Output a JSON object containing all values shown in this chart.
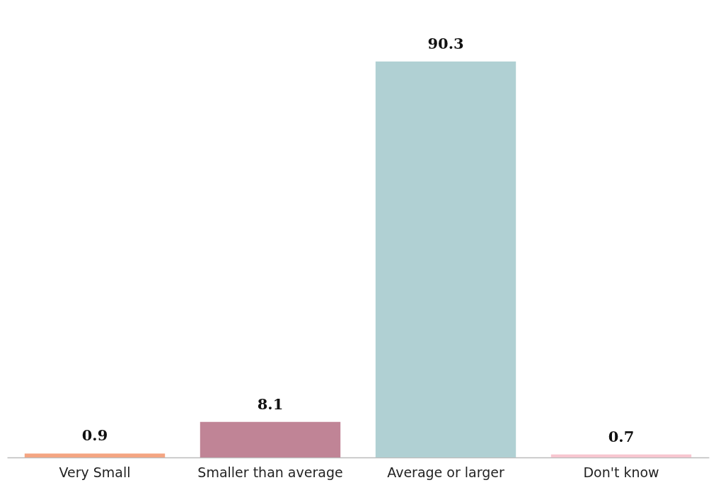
{
  "chart_data": {
    "type": "bar",
    "categories": [
      "Very Small",
      "Smaller than average",
      "Average or larger",
      "Don't know"
    ],
    "values": [
      0.9,
      8.1,
      90.3,
      0.7
    ],
    "colors": [
      "#f4a582",
      "#c08496",
      "#b0d0d3",
      "#f7c6d0"
    ],
    "data_labels": true,
    "grid": false,
    "legend": false
  }
}
